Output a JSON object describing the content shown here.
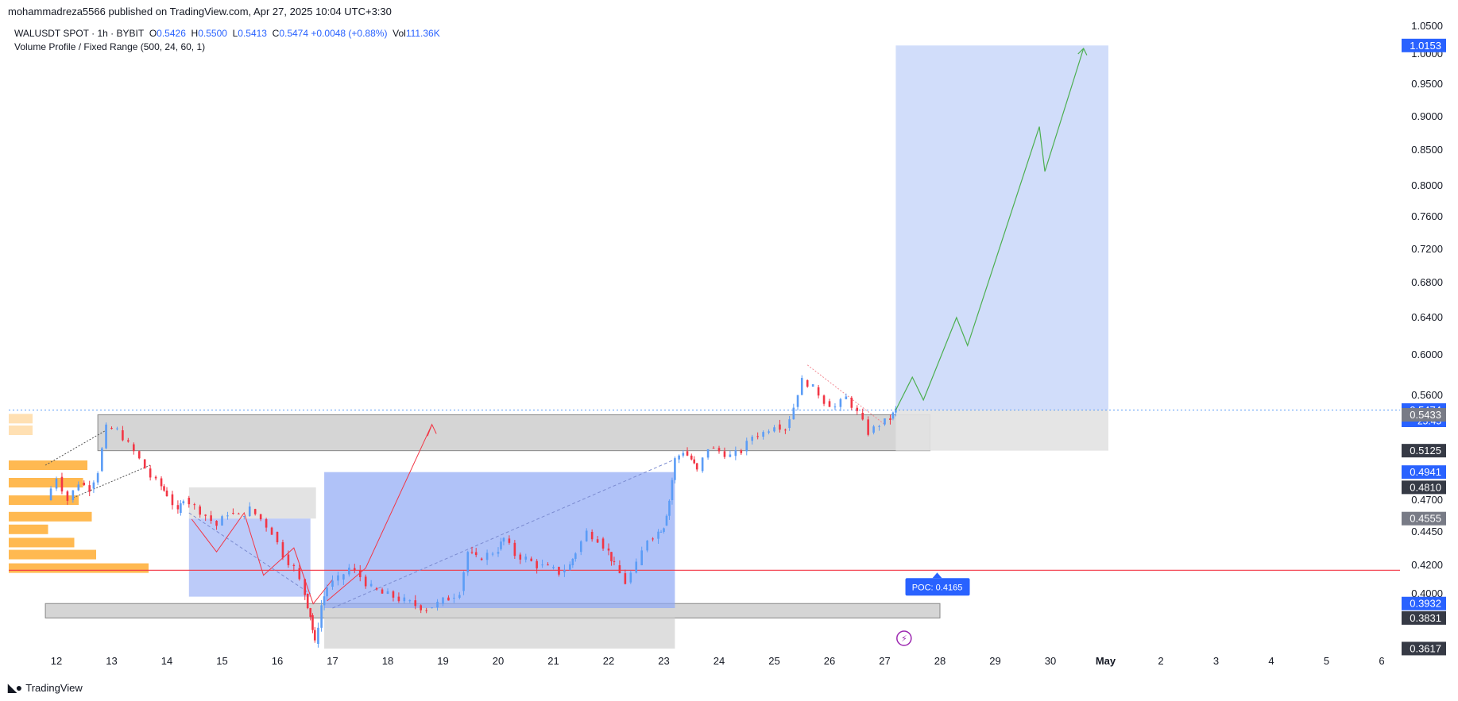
{
  "header": {
    "published": "mohammadreza5566 published on TradingView.com, Apr 27, 2025 10:04 UTC+3:30"
  },
  "legend": {
    "symbol": "WALUSDT SPOT · 1h · BYBIT",
    "o_label": "O",
    "o": "0.5426",
    "h_label": "H",
    "h": "0.5500",
    "l_label": "L",
    "l": "0.5413",
    "c_label": "C",
    "c": "0.5474",
    "change": "+0.0048 (+0.88%)",
    "vol_label": "Vol",
    "vol": "111.36K",
    "indicator": "Volume Profile / Fixed Range (500, 24, 60, 1)"
  },
  "footer": {
    "brand": "TradingView"
  },
  "colors": {
    "bull": "#5b9cf6",
    "bear": "#f23645",
    "accent": "#2962ff",
    "poc": "#f23645",
    "volume": "#ffa726",
    "zone_gray": "#bdbdbd",
    "zone_blue": "#7b9cf5",
    "path_green": "#4caf50"
  },
  "chart_data": {
    "type": "line",
    "x_ticks": [
      "12",
      "13",
      "14",
      "15",
      "16",
      "17",
      "18",
      "19",
      "20",
      "21",
      "22",
      "23",
      "24",
      "25",
      "26",
      "27",
      "28",
      "29",
      "30",
      "May",
      "2",
      "3",
      "4",
      "5",
      "6"
    ],
    "y_ticks": [
      "1.0500",
      "1.0000",
      "0.9500",
      "0.9000",
      "0.8500",
      "0.8000",
      "0.7600",
      "0.7200",
      "0.6800",
      "0.6400",
      "0.6000",
      "0.5600",
      "0.4700",
      "0.4450",
      "0.4200",
      "0.4000"
    ],
    "price_labels": [
      {
        "text": "1.0153",
        "value": 1.0153,
        "style": "blue"
      },
      {
        "text": "0.5474",
        "value": 0.5474,
        "style": "blue",
        "sub": "25:45"
      },
      {
        "text": "0.5433",
        "value": 0.5433,
        "style": "gray"
      },
      {
        "text": "0.5125",
        "value": 0.5125,
        "style": "dark"
      },
      {
        "text": "0.4941",
        "value": 0.4941,
        "style": "blue"
      },
      {
        "text": "0.4810",
        "value": 0.481,
        "style": "dark"
      },
      {
        "text": "0.4555",
        "value": 0.4555,
        "style": "gray"
      },
      {
        "text": "0.3932",
        "value": 0.3932,
        "style": "blue"
      },
      {
        "text": "0.3831",
        "value": 0.3831,
        "style": "dark"
      },
      {
        "text": "0.3617",
        "value": 0.3617,
        "style": "dark"
      }
    ],
    "poc": {
      "label": "POC: 0.4165",
      "value": 0.4165
    },
    "price_path": [
      [
        11.8,
        0.47
      ],
      [
        12.0,
        0.49
      ],
      [
        12.2,
        0.47
      ],
      [
        12.4,
        0.485
      ],
      [
        12.6,
        0.48
      ],
      [
        12.75,
        0.495
      ],
      [
        12.9,
        0.532
      ],
      [
        13.1,
        0.53
      ],
      [
        13.3,
        0.518
      ],
      [
        13.5,
        0.505
      ],
      [
        13.7,
        0.49
      ],
      [
        13.9,
        0.482
      ],
      [
        14.0,
        0.475
      ],
      [
        14.2,
        0.46
      ],
      [
        14.3,
        0.472
      ],
      [
        14.5,
        0.465
      ],
      [
        14.7,
        0.458
      ],
      [
        14.9,
        0.45
      ],
      [
        15.1,
        0.46
      ],
      [
        15.3,
        0.457
      ],
      [
        15.5,
        0.463
      ],
      [
        15.7,
        0.455
      ],
      [
        15.9,
        0.445
      ],
      [
        16.1,
        0.428
      ],
      [
        16.3,
        0.418
      ],
      [
        16.5,
        0.4
      ],
      [
        16.6,
        0.385
      ],
      [
        16.68,
        0.365
      ],
      [
        16.8,
        0.392
      ],
      [
        16.9,
        0.405
      ],
      [
        17.1,
        0.41
      ],
      [
        17.3,
        0.418
      ],
      [
        17.5,
        0.412
      ],
      [
        17.7,
        0.404
      ],
      [
        17.9,
        0.4
      ],
      [
        18.1,
        0.398
      ],
      [
        18.3,
        0.395
      ],
      [
        18.5,
        0.392
      ],
      [
        18.7,
        0.39
      ],
      [
        18.9,
        0.393
      ],
      [
        19.1,
        0.397
      ],
      [
        19.3,
        0.402
      ],
      [
        19.45,
        0.43
      ],
      [
        19.6,
        0.425
      ],
      [
        19.8,
        0.428
      ],
      [
        20.0,
        0.432
      ],
      [
        20.1,
        0.44
      ],
      [
        20.3,
        0.428
      ],
      [
        20.5,
        0.425
      ],
      [
        20.7,
        0.42
      ],
      [
        20.9,
        0.418
      ],
      [
        21.1,
        0.415
      ],
      [
        21.3,
        0.42
      ],
      [
        21.4,
        0.43
      ],
      [
        21.6,
        0.445
      ],
      [
        21.8,
        0.44
      ],
      [
        22.0,
        0.43
      ],
      [
        22.1,
        0.42
      ],
      [
        22.3,
        0.408
      ],
      [
        22.5,
        0.42
      ],
      [
        22.7,
        0.44
      ],
      [
        22.9,
        0.445
      ],
      [
        23.0,
        0.45
      ],
      [
        23.1,
        0.47
      ],
      [
        23.2,
        0.505
      ],
      [
        23.35,
        0.512
      ],
      [
        23.5,
        0.505
      ],
      [
        23.6,
        0.495
      ],
      [
        23.8,
        0.515
      ],
      [
        24.0,
        0.512
      ],
      [
        24.2,
        0.508
      ],
      [
        24.4,
        0.512
      ],
      [
        24.6,
        0.525
      ],
      [
        24.8,
        0.528
      ],
      [
        25.0,
        0.535
      ],
      [
        25.2,
        0.532
      ],
      [
        25.35,
        0.55
      ],
      [
        25.5,
        0.575
      ],
      [
        25.7,
        0.568
      ],
      [
        25.9,
        0.555
      ],
      [
        26.1,
        0.55
      ],
      [
        26.3,
        0.558
      ],
      [
        26.5,
        0.545
      ],
      [
        26.7,
        0.528
      ],
      [
        26.9,
        0.535
      ],
      [
        27.1,
        0.54
      ],
      [
        27.2,
        0.5474
      ]
    ],
    "forecast_path": [
      [
        27.2,
        0.5474
      ],
      [
        27.5,
        0.578
      ],
      [
        27.7,
        0.556
      ],
      [
        28.3,
        0.64
      ],
      [
        28.5,
        0.61
      ],
      [
        29.8,
        0.885
      ],
      [
        29.9,
        0.82
      ],
      [
        30.6,
        1.01
      ]
    ],
    "xlabel": "",
    "ylabel": "",
    "grid": false,
    "legend": "top-left"
  }
}
